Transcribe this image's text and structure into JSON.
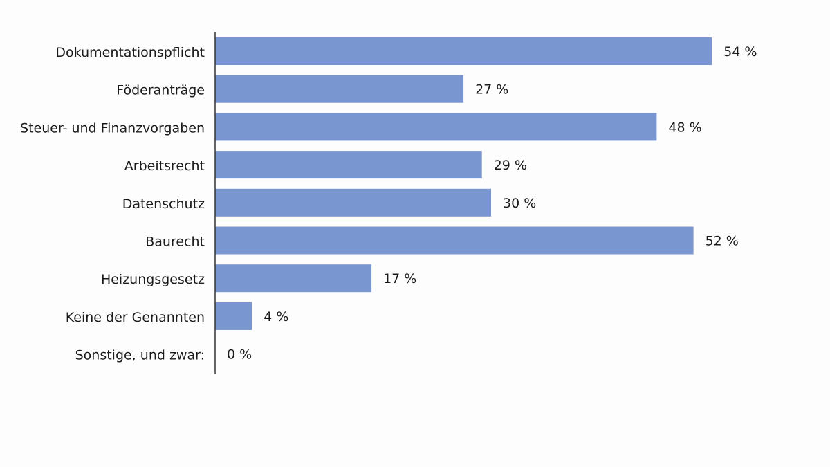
{
  "chart_data": {
    "type": "bar",
    "orientation": "horizontal",
    "categories": [
      "Dokumentationspflicht",
      "Föderanträge",
      "Steuer- und Finanzvorgaben",
      "Arbeitsrecht",
      "Datenschutz",
      "Baurecht",
      "Heizungsgesetz",
      "Keine der Genannten",
      "Sonstige, und zwar:"
    ],
    "values": [
      54,
      27,
      48,
      29,
      30,
      52,
      17,
      4,
      0
    ],
    "value_labels": [
      "54 %",
      "27 %",
      "48 %",
      "29 %",
      "30 %",
      "52 %",
      "17 %",
      "4 %",
      "0 %"
    ],
    "unit": "%",
    "xlim": [
      0,
      60
    ],
    "grid": false,
    "legend": "none",
    "bar_color": "#7a96d0",
    "axis_color": "#333333",
    "text_color": "#1a1a1a"
  }
}
